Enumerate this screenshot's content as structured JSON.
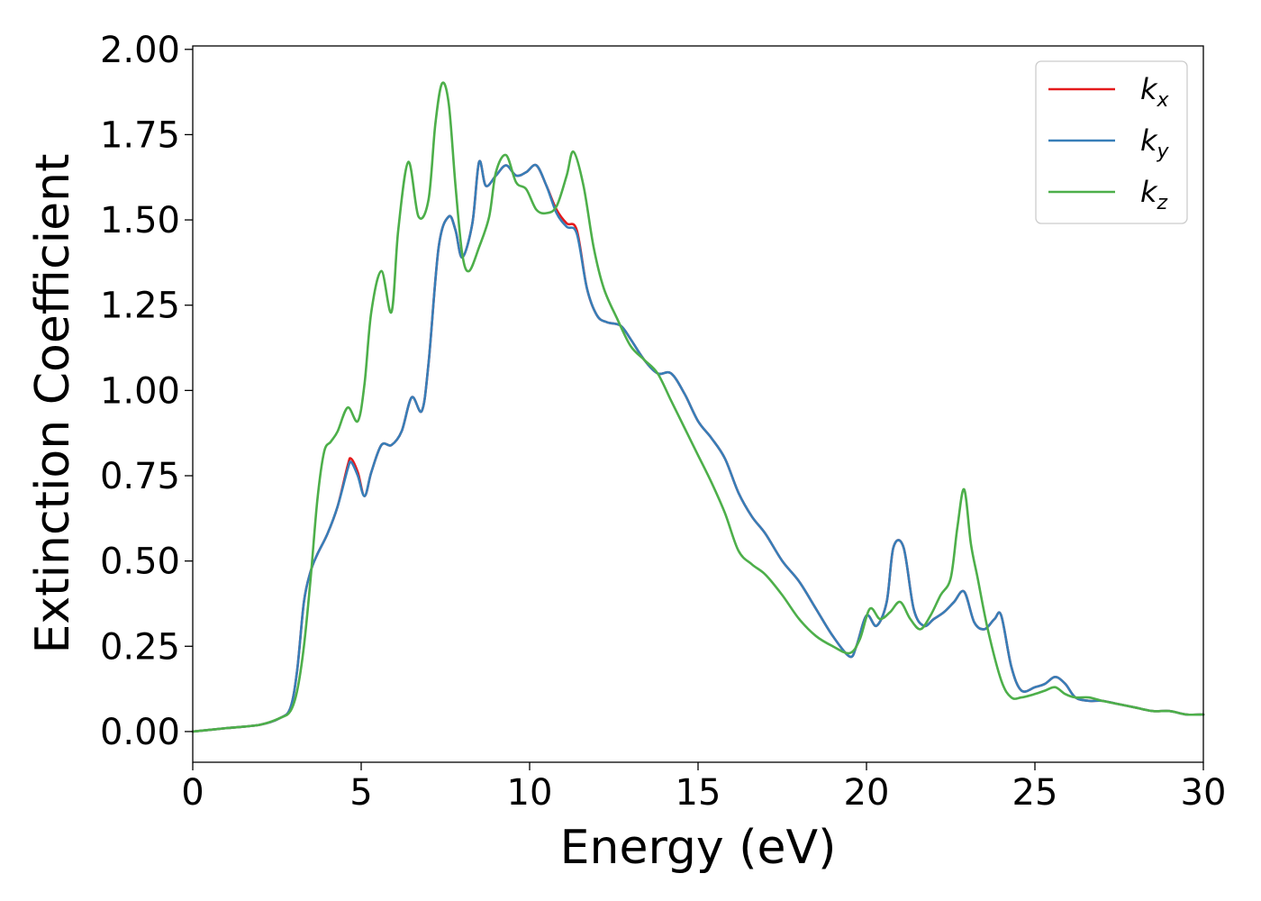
{
  "chart_data": {
    "type": "line",
    "title": "",
    "xlabel": "Energy (eV)",
    "ylabel": "Extinction Coefficient",
    "xlim": [
      0,
      30
    ],
    "ylim": [
      -0.09,
      2.01
    ],
    "xticks": [
      0,
      5,
      10,
      15,
      20,
      25,
      30
    ],
    "xtick_labels": [
      "0",
      "5",
      "10",
      "15",
      "20",
      "25",
      "30"
    ],
    "yticks": [
      0,
      0.25,
      0.5,
      0.75,
      1.0,
      1.25,
      1.5,
      1.75,
      2.0
    ],
    "ytick_labels": [
      "0.00",
      "0.25",
      "0.50",
      "0.75",
      "1.00",
      "1.25",
      "1.50",
      "1.75",
      "2.00"
    ],
    "grid": false,
    "legend_position": "top-right",
    "series": [
      {
        "name_base": "k",
        "name_sub": "x",
        "color": "#e41a1c",
        "x": [
          0,
          1,
          2,
          2.6,
          2.9,
          3.1,
          3.3,
          3.5,
          3.7,
          4.0,
          4.3,
          4.6,
          4.7,
          4.9,
          5.1,
          5.3,
          5.6,
          5.9,
          6.2,
          6.5,
          6.8,
          7.0,
          7.3,
          7.6,
          7.8,
          8.0,
          8.3,
          8.5,
          8.7,
          9.0,
          9.3,
          9.6,
          9.9,
          10.2,
          10.5,
          10.8,
          11.1,
          11.4,
          11.7,
          12.0,
          12.3,
          12.7,
          13.0,
          13.4,
          13.8,
          14.2,
          14.6,
          15.0,
          15.4,
          15.8,
          16.2,
          16.6,
          17.0,
          17.5,
          18.0,
          18.5,
          19.0,
          19.5,
          19.7,
          20.0,
          20.3,
          20.6,
          20.8,
          21.1,
          21.4,
          21.7,
          22.0,
          22.3,
          22.6,
          22.9,
          23.2,
          23.5,
          23.8,
          24.0,
          24.3,
          24.6,
          25.0,
          25.3,
          25.6,
          25.9,
          26.2,
          26.6,
          27.0,
          27.5,
          28.0,
          28.5,
          29.0,
          29.5,
          30.0
        ],
        "y": [
          0.0,
          0.01,
          0.02,
          0.04,
          0.07,
          0.18,
          0.38,
          0.47,
          0.52,
          0.58,
          0.66,
          0.78,
          0.8,
          0.76,
          0.69,
          0.76,
          0.84,
          0.84,
          0.88,
          0.98,
          0.94,
          1.08,
          1.42,
          1.51,
          1.47,
          1.39,
          1.49,
          1.67,
          1.6,
          1.63,
          1.66,
          1.63,
          1.64,
          1.66,
          1.6,
          1.53,
          1.49,
          1.47,
          1.3,
          1.22,
          1.2,
          1.19,
          1.15,
          1.09,
          1.05,
          1.05,
          0.99,
          0.91,
          0.86,
          0.8,
          0.7,
          0.63,
          0.58,
          0.5,
          0.44,
          0.36,
          0.28,
          0.22,
          0.25,
          0.34,
          0.31,
          0.38,
          0.54,
          0.54,
          0.36,
          0.31,
          0.33,
          0.35,
          0.38,
          0.41,
          0.32,
          0.3,
          0.33,
          0.34,
          0.19,
          0.12,
          0.13,
          0.14,
          0.16,
          0.14,
          0.1,
          0.09,
          0.09,
          0.08,
          0.07,
          0.06,
          0.06,
          0.05,
          0.05
        ]
      },
      {
        "name_base": "k",
        "name_sub": "y",
        "color": "#377eb8",
        "x": [
          0,
          1,
          2,
          2.6,
          2.9,
          3.1,
          3.3,
          3.5,
          3.7,
          4.0,
          4.3,
          4.6,
          4.7,
          4.9,
          5.1,
          5.3,
          5.6,
          5.9,
          6.2,
          6.5,
          6.8,
          7.0,
          7.3,
          7.6,
          7.8,
          8.0,
          8.3,
          8.5,
          8.7,
          9.0,
          9.3,
          9.6,
          9.9,
          10.2,
          10.5,
          10.8,
          11.1,
          11.4,
          11.7,
          12.0,
          12.3,
          12.7,
          13.0,
          13.4,
          13.8,
          14.2,
          14.6,
          15.0,
          15.4,
          15.8,
          16.2,
          16.6,
          17.0,
          17.5,
          18.0,
          18.5,
          19.0,
          19.5,
          19.7,
          20.0,
          20.3,
          20.6,
          20.8,
          21.1,
          21.4,
          21.7,
          22.0,
          22.3,
          22.6,
          22.9,
          23.2,
          23.5,
          23.8,
          24.0,
          24.3,
          24.6,
          25.0,
          25.3,
          25.6,
          25.9,
          26.2,
          26.6,
          27.0,
          27.5,
          28.0,
          28.5,
          29.0,
          29.5,
          30.0
        ],
        "y": [
          0.0,
          0.01,
          0.02,
          0.04,
          0.07,
          0.18,
          0.38,
          0.47,
          0.52,
          0.58,
          0.66,
          0.77,
          0.79,
          0.75,
          0.69,
          0.76,
          0.84,
          0.84,
          0.88,
          0.98,
          0.94,
          1.08,
          1.42,
          1.51,
          1.47,
          1.39,
          1.49,
          1.67,
          1.6,
          1.63,
          1.66,
          1.63,
          1.64,
          1.66,
          1.6,
          1.52,
          1.48,
          1.46,
          1.3,
          1.22,
          1.2,
          1.19,
          1.15,
          1.09,
          1.05,
          1.05,
          0.99,
          0.91,
          0.86,
          0.8,
          0.7,
          0.63,
          0.58,
          0.5,
          0.44,
          0.36,
          0.28,
          0.22,
          0.25,
          0.34,
          0.31,
          0.38,
          0.54,
          0.54,
          0.36,
          0.31,
          0.33,
          0.35,
          0.38,
          0.41,
          0.32,
          0.3,
          0.33,
          0.34,
          0.19,
          0.12,
          0.13,
          0.14,
          0.16,
          0.14,
          0.1,
          0.09,
          0.09,
          0.08,
          0.07,
          0.06,
          0.06,
          0.05,
          0.05
        ]
      },
      {
        "name_base": "k",
        "name_sub": "z",
        "color": "#4daf4a",
        "x": [
          0,
          1,
          2,
          2.6,
          2.9,
          3.1,
          3.3,
          3.5,
          3.7,
          3.9,
          4.1,
          4.3,
          4.6,
          4.9,
          5.1,
          5.3,
          5.6,
          5.9,
          6.1,
          6.4,
          6.7,
          7.0,
          7.2,
          7.4,
          7.6,
          7.8,
          8.0,
          8.2,
          8.5,
          8.8,
          9.0,
          9.3,
          9.6,
          9.9,
          10.2,
          10.5,
          10.8,
          11.1,
          11.3,
          11.6,
          11.9,
          12.2,
          12.6,
          13.0,
          13.4,
          13.8,
          14.2,
          14.6,
          15.0,
          15.4,
          15.8,
          16.2,
          16.6,
          17.0,
          17.5,
          18.0,
          18.5,
          19.0,
          19.5,
          19.8,
          20.1,
          20.4,
          20.7,
          21.0,
          21.3,
          21.6,
          21.9,
          22.2,
          22.5,
          22.7,
          22.9,
          23.1,
          23.3,
          23.6,
          24.0,
          24.3,
          24.6,
          25.0,
          25.3,
          25.6,
          25.9,
          26.2,
          26.6,
          27.0,
          27.5,
          28.0,
          28.5,
          29.0,
          29.5,
          30.0
        ],
        "y": [
          0.0,
          0.01,
          0.02,
          0.04,
          0.06,
          0.12,
          0.25,
          0.45,
          0.68,
          0.82,
          0.85,
          0.88,
          0.95,
          0.91,
          1.02,
          1.23,
          1.35,
          1.23,
          1.47,
          1.67,
          1.51,
          1.56,
          1.78,
          1.9,
          1.84,
          1.6,
          1.4,
          1.35,
          1.42,
          1.51,
          1.64,
          1.69,
          1.61,
          1.59,
          1.53,
          1.52,
          1.54,
          1.63,
          1.7,
          1.6,
          1.42,
          1.3,
          1.21,
          1.13,
          1.09,
          1.05,
          0.97,
          0.89,
          0.81,
          0.73,
          0.64,
          0.53,
          0.49,
          0.46,
          0.4,
          0.33,
          0.28,
          0.25,
          0.23,
          0.27,
          0.36,
          0.33,
          0.35,
          0.38,
          0.33,
          0.3,
          0.34,
          0.4,
          0.45,
          0.6,
          0.71,
          0.55,
          0.45,
          0.3,
          0.15,
          0.1,
          0.1,
          0.11,
          0.12,
          0.13,
          0.11,
          0.1,
          0.1,
          0.09,
          0.08,
          0.07,
          0.06,
          0.06,
          0.05,
          0.05
        ]
      }
    ]
  }
}
